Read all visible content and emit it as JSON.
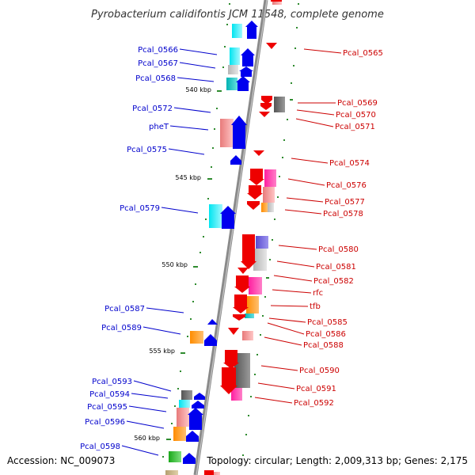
{
  "title": "Pyrobacterium calidifontis JCM 11548, complete genome",
  "footer": {
    "accession": "Accession: NC_009073",
    "summary": "Topology: circular; Length: 2,009,313 bp; Genes: 2,175"
  },
  "colors": {
    "forward_label": "#0000cc",
    "reverse_label": "#cc0000",
    "backbone": "#8a8a8a",
    "tick": "#2e8b2e"
  },
  "kbp_labels": [
    "540 kbp",
    "545 kbp",
    "550 kbp",
    "555 kbp",
    "560 kbp"
  ],
  "forward_genes": [
    "Pcal_0566",
    "Pcal_0567",
    "Pcal_0568",
    "Pcal_0572",
    "pheT",
    "Pcal_0575",
    "Pcal_0579",
    "Pcal_0587",
    "Pcal_0589",
    "Pcal_0593",
    "Pcal_0594",
    "Pcal_0595",
    "Pcal_0596",
    "Pcal_0598"
  ],
  "reverse_genes": [
    "Pcal_0565",
    "Pcal_0569",
    "Pcal_0570",
    "Pcal_0571",
    "Pcal_0574",
    "Pcal_0576",
    "Pcal_0577",
    "Pcal_0578",
    "Pcal_0580",
    "Pcal_0581",
    "Pcal_0582",
    "rfc",
    "tfb",
    "Pcal_0585",
    "Pcal_0586",
    "Pcal_0588",
    "Pcal_0590",
    "Pcal_0591",
    "Pcal_0592"
  ]
}
